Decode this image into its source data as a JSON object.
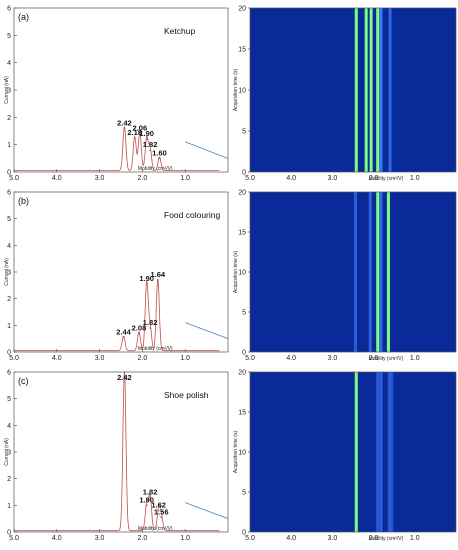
{
  "chart_data": [
    {
      "type": "line",
      "panel_label": "(a)",
      "title": "Ketchup",
      "xlabel": "Mobility (cm²/V)",
      "ylabel": "Current (nA)",
      "xlim": [
        5.0,
        0.0
      ],
      "ylim": [
        0,
        6
      ],
      "x_ticks": [
        "5.0",
        "4.0",
        "3.0",
        "2.0",
        "1.0"
      ],
      "y_ticks": [
        "0",
        "1",
        "2",
        "3",
        "4",
        "5",
        "6"
      ],
      "peaks": [
        {
          "label": "2.42",
          "x": 2.42,
          "y": 1.6
        },
        {
          "label": "2.18",
          "x": 2.18,
          "y": 1.25
        },
        {
          "label": "2.06",
          "x": 2.06,
          "y": 1.4
        },
        {
          "label": "1.90",
          "x": 1.9,
          "y": 1.2
        },
        {
          "label": "1.82",
          "x": 1.82,
          "y": 0.8
        },
        {
          "label": "1.60",
          "x": 1.6,
          "y": 0.5
        }
      ]
    },
    {
      "type": "heatmap",
      "xlabel": "Mobility (cm²/V)",
      "ylabel": "Acquisition time (s)",
      "xlim": [
        5.0,
        0.0
      ],
      "ylim": [
        0,
        20
      ],
      "x_ticks": [
        "5.0",
        "4.0",
        "3.0",
        "2.0",
        "1.0"
      ],
      "y_ticks": [
        "0",
        "5",
        "10",
        "15",
        "20"
      ]
    },
    {
      "type": "line",
      "panel_label": "(b)",
      "title": "Food colouring",
      "xlabel": "Mobility (cm²/V)",
      "ylabel": "Current (nA)",
      "xlim": [
        5.0,
        0.0
      ],
      "ylim": [
        0,
        6
      ],
      "x_ticks": [
        "5.0",
        "4.0",
        "3.0",
        "2.0",
        "1.0"
      ],
      "y_ticks": [
        "0",
        "1",
        "2",
        "3",
        "4",
        "5",
        "6"
      ],
      "peaks": [
        {
          "label": "2.44",
          "x": 2.44,
          "y": 0.55
        },
        {
          "label": "2.08",
          "x": 2.08,
          "y": 0.7
        },
        {
          "label": "1.90",
          "x": 1.9,
          "y": 2.55
        },
        {
          "label": "1.82",
          "x": 1.82,
          "y": 0.9
        },
        {
          "label": "1.64",
          "x": 1.64,
          "y": 2.7
        }
      ]
    },
    {
      "type": "heatmap",
      "xlabel": "Mobility (cm²/V)",
      "ylabel": "Acquisition time (s)",
      "xlim": [
        5.0,
        0.0
      ],
      "ylim": [
        0,
        20
      ],
      "x_ticks": [
        "5.0",
        "4.0",
        "3.0",
        "2.0",
        "1.0"
      ],
      "y_ticks": [
        "0",
        "5",
        "10",
        "15",
        "20"
      ]
    },
    {
      "type": "line",
      "panel_label": "(c)",
      "title": "Shoe polish",
      "xlabel": "Mobility (cm²/V)",
      "ylabel": "Current (nA)",
      "xlim": [
        5.0,
        0.0
      ],
      "ylim": [
        0,
        6
      ],
      "x_ticks": [
        "5.0",
        "4.0",
        "3.0",
        "2.0",
        "1.0"
      ],
      "y_ticks": [
        "0",
        "1",
        "2",
        "3",
        "4",
        "5",
        "6"
      ],
      "peaks": [
        {
          "label": "2.42",
          "x": 2.42,
          "y": 6.0
        },
        {
          "label": "1.90",
          "x": 1.9,
          "y": 1.0
        },
        {
          "label": "1.82",
          "x": 1.82,
          "y": 1.3
        },
        {
          "label": "1.62",
          "x": 1.62,
          "y": 0.8
        },
        {
          "label": "1.56",
          "x": 1.56,
          "y": 0.55
        }
      ]
    },
    {
      "type": "heatmap",
      "xlabel": "Mobility (cm²/V)",
      "ylabel": "Acquisition time (s)",
      "xlim": [
        5.0,
        0.0
      ],
      "ylim": [
        0,
        20
      ],
      "x_ticks": [
        "5.0",
        "4.0",
        "3.0",
        "2.0",
        "1.0"
      ],
      "y_ticks": [
        "0",
        "5",
        "10",
        "15",
        "20"
      ]
    }
  ],
  "colors": {
    "trace": "#c0504d",
    "trace_secondary": "#4f81bd",
    "heatmap_background": "#0a2a9a",
    "heatmap_band": "#3a7bff",
    "heatmap_band_strong": "#7fff7f"
  }
}
